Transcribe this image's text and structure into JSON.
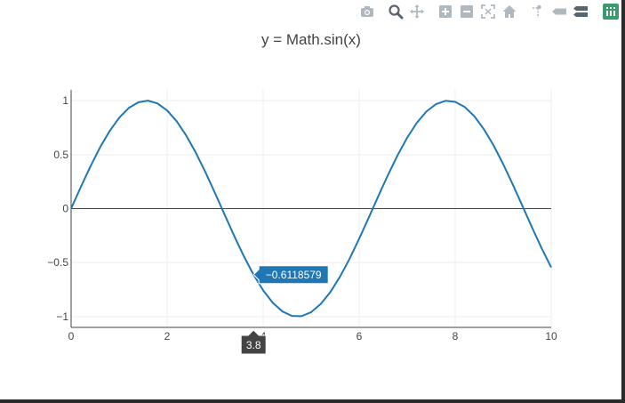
{
  "modebar": {
    "buttons": [
      {
        "name": "camera-icon",
        "title": "Download plot as a png"
      },
      {
        "name": "zoom-icon",
        "title": "Zoom"
      },
      {
        "name": "pan-icon",
        "title": "Pan"
      },
      {
        "name": "zoom-in-icon",
        "title": "Zoom in"
      },
      {
        "name": "zoom-out-icon",
        "title": "Zoom out"
      },
      {
        "name": "autoscale-icon",
        "title": "Autoscale"
      },
      {
        "name": "home-icon",
        "title": "Reset axes"
      },
      {
        "name": "spike-lines-icon",
        "title": "Toggle Spike Lines"
      },
      {
        "name": "hover-closest-icon",
        "title": "Show closest data on hover"
      },
      {
        "name": "hover-compare-icon",
        "title": "Compare data on hover"
      },
      {
        "name": "plotly-logo-icon",
        "title": "Produced with Plotly"
      }
    ]
  },
  "colors": {
    "series": "#1f77b4",
    "grid": "#eeeeee",
    "axis": "#444444",
    "tooltip_x_bg": "#444444",
    "modebar_icon": "#b0b8c0",
    "modebar_active": "#6f7a86",
    "logo": "#3d9970"
  },
  "chart_data": {
    "type": "line",
    "title": "y = Math.sin(x)",
    "xlabel": "",
    "ylabel": "",
    "xlim": [
      0,
      10
    ],
    "ylim": [
      -1.1,
      1.1
    ],
    "x_ticks": [
      0,
      2,
      4,
      6,
      8,
      10
    ],
    "y_ticks": [
      -1,
      -0.5,
      0,
      0.5,
      1
    ],
    "x_tick_labels": [
      "0",
      "2",
      "4",
      "6",
      "8",
      "10"
    ],
    "y_tick_labels": [
      "−1",
      "−0.5",
      "0",
      "0.5",
      "1"
    ],
    "grid": true,
    "zeroline": true,
    "series": [
      {
        "x": [
          0,
          0.2,
          0.4,
          0.6,
          0.8,
          1,
          1.2,
          1.4,
          1.6,
          1.8,
          2,
          2.2,
          2.4,
          2.6,
          2.8,
          3,
          3.2,
          3.4,
          3.6,
          3.8,
          4,
          4.2,
          4.4,
          4.6,
          4.8,
          5,
          5.2,
          5.4,
          5.6,
          5.8,
          6,
          6.2,
          6.4,
          6.6,
          6.8,
          7,
          7.2,
          7.4,
          7.6,
          7.8,
          8,
          8.2,
          8.4,
          8.6,
          8.8,
          9,
          9.2,
          9.4,
          9.6,
          9.8,
          10
        ],
        "y": [
          0,
          0.199,
          0.389,
          0.565,
          0.717,
          0.841,
          0.932,
          0.985,
          1.0,
          0.974,
          0.909,
          0.808,
          0.675,
          0.516,
          0.335,
          0.141,
          -0.058,
          -0.256,
          -0.443,
          -0.612,
          -0.757,
          -0.872,
          -0.952,
          -0.994,
          -0.996,
          -0.959,
          -0.883,
          -0.773,
          -0.631,
          -0.465,
          -0.279,
          -0.083,
          0.117,
          0.312,
          0.494,
          0.657,
          0.794,
          0.899,
          0.968,
          0.999,
          0.989,
          0.941,
          0.855,
          0.734,
          0.585,
          0.412,
          0.223,
          0.025,
          -0.174,
          -0.366,
          -0.544
        ]
      }
    ],
    "hover": {
      "x": 3.8,
      "y": -0.6118579,
      "x_label": "3.8",
      "y_label": "−0.6118579"
    }
  }
}
